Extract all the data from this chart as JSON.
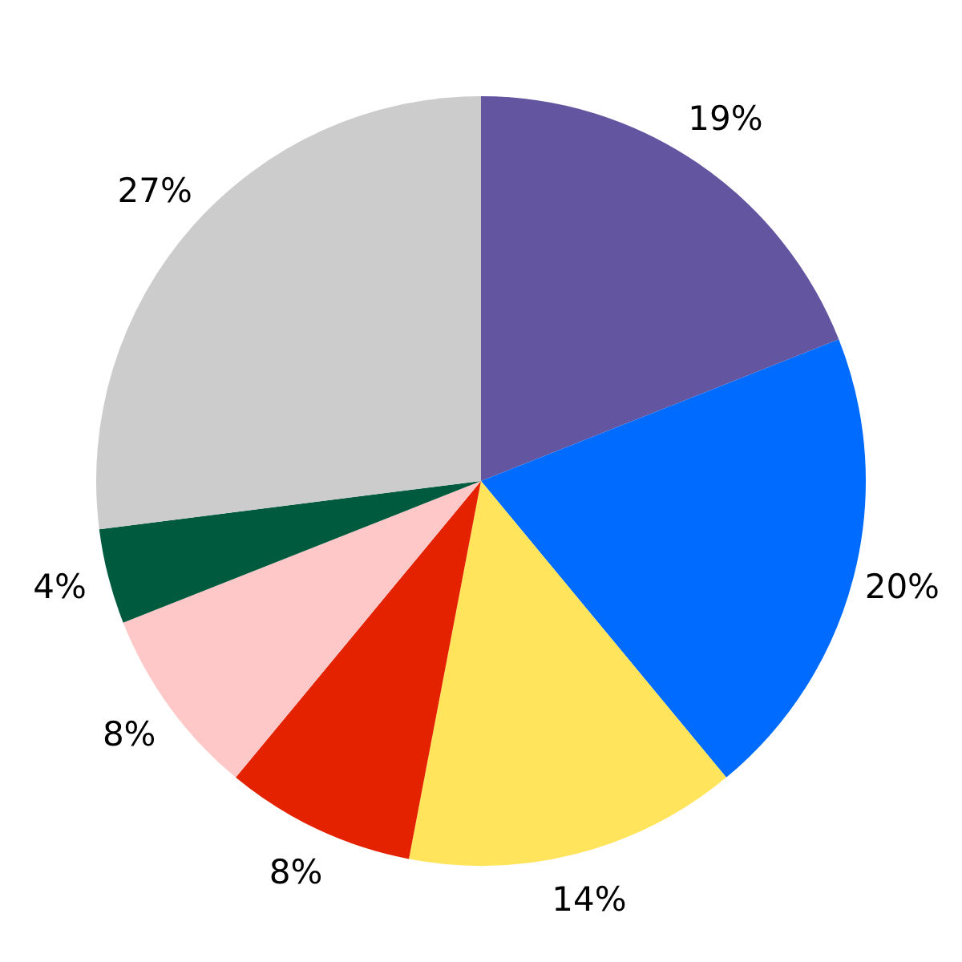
{
  "chart_data": {
    "type": "pie",
    "categories": [
      null,
      null,
      null,
      null,
      null,
      null,
      null
    ],
    "values": [
      19,
      20,
      14,
      8,
      8,
      4,
      27
    ],
    "colors": [
      "#6355a0",
      "#006cff",
      "#ffe45c",
      "#e42200",
      "#ffc8c8",
      "#005a3e",
      "#cccccc"
    ],
    "value_labels": [
      "19%",
      "20%",
      "14%",
      "8%",
      "8%",
      "4%",
      "27%"
    ]
  }
}
